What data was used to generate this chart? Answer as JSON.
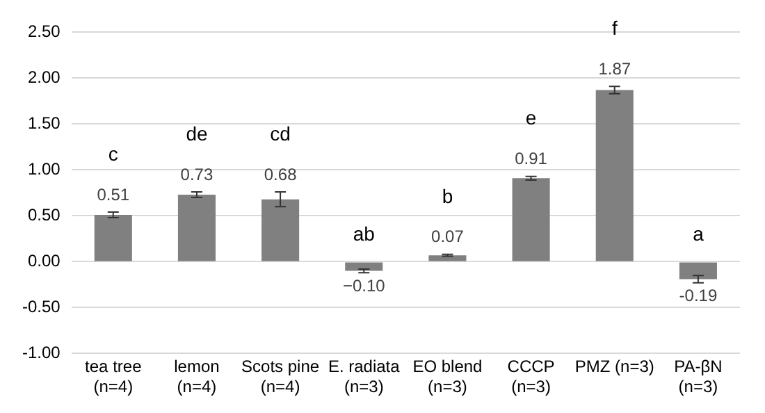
{
  "chart_data": {
    "type": "bar",
    "categories": [
      "tea tree\n(n=4)",
      "lemon\n(n=4)",
      "Scots pine\n(n=4)",
      "E. radiata\n(n=3)",
      "EO blend\n(n=3)",
      "CCCP\n(n=3)",
      "PMZ (n=3)",
      "PA-βN\n(n=3)"
    ],
    "values": [
      0.51,
      0.73,
      0.68,
      -0.1,
      0.07,
      0.91,
      1.87,
      -0.19
    ],
    "errors": [
      0.03,
      0.03,
      0.08,
      0.02,
      0.01,
      0.02,
      0.04,
      0.04
    ],
    "value_labels": [
      "0.51",
      "0.73",
      "0.68",
      "−0.10",
      "0.07",
      "0.91",
      "1.87",
      "-0.19"
    ],
    "color": "#808080",
    "ylim": [
      -1,
      2.5
    ],
    "yticks": [
      {
        "value": -1,
        "label": "-1.00"
      },
      {
        "value": -0.5,
        "label": "-0.50"
      },
      {
        "value": 0,
        "label": "0.00"
      },
      {
        "value": 0.5,
        "label": "0.50"
      },
      {
        "value": 1,
        "label": "1.00"
      },
      {
        "value": 1.5,
        "label": "1.50"
      },
      {
        "value": 2,
        "label": "2.00"
      },
      {
        "value": 2.5,
        "label": "2.50"
      }
    ],
    "grid": "y",
    "annotations": [
      "c",
      "de",
      "cd",
      "ab",
      "b",
      "e",
      "f",
      "a"
    ]
  }
}
